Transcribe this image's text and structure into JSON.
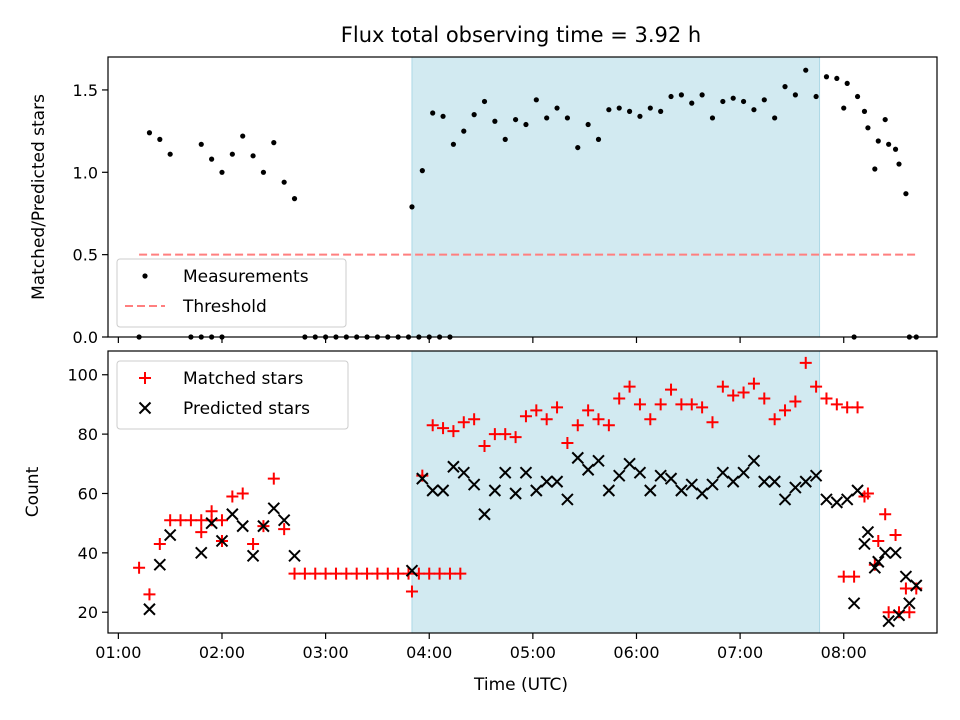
{
  "chart_data": [
    {
      "type": "scatter",
      "title": "Flux total observing time = 3.92 h",
      "ylabel": "Matched/Predicted stars",
      "xlabel": "",
      "ylim": [
        0,
        1.7
      ],
      "xlim": [
        "00:54",
        "08:54"
      ],
      "grid": false,
      "legend_position": "lower-left",
      "x_ticks": [
        "01:00",
        "02:00",
        "03:00",
        "04:00",
        "05:00",
        "06:00",
        "07:00",
        "08:00"
      ],
      "y_ticks": [
        "0.0",
        "0.5",
        "1.0",
        "1.5"
      ],
      "shaded_interval": [
        "03:50",
        "07:46"
      ],
      "shade_color": "#add8e6",
      "series": [
        {
          "name": "Measurements",
          "kind": "points",
          "color": "#000000",
          "points": [
            [
              "01:12",
              0.0
            ],
            [
              "01:18",
              1.24
            ],
            [
              "01:24",
              1.2
            ],
            [
              "01:30",
              1.11
            ],
            [
              "01:42",
              0.0
            ],
            [
              "01:48",
              0.0
            ],
            [
              "01:54",
              0.0
            ],
            [
              "02:00",
              0.0
            ],
            [
              "01:48",
              1.17
            ],
            [
              "01:54",
              1.08
            ],
            [
              "02:00",
              1.0
            ],
            [
              "02:06",
              1.11
            ],
            [
              "02:12",
              1.22
            ],
            [
              "02:18",
              1.1
            ],
            [
              "02:24",
              1.0
            ],
            [
              "02:30",
              1.18
            ],
            [
              "02:36",
              0.94
            ],
            [
              "02:42",
              0.84
            ],
            [
              "02:48",
              0.0
            ],
            [
              "02:54",
              0.0
            ],
            [
              "03:00",
              0.0
            ],
            [
              "03:06",
              0.0
            ],
            [
              "03:12",
              0.0
            ],
            [
              "03:18",
              0.0
            ],
            [
              "03:24",
              0.0
            ],
            [
              "03:30",
              0.0
            ],
            [
              "03:36",
              0.0
            ],
            [
              "03:42",
              0.0
            ],
            [
              "03:48",
              0.0
            ],
            [
              "03:54",
              0.0
            ],
            [
              "04:00",
              0.0
            ],
            [
              "04:06",
              0.0
            ],
            [
              "04:12",
              0.0
            ],
            [
              "03:50",
              0.79
            ],
            [
              "03:56",
              1.01
            ],
            [
              "04:02",
              1.36
            ],
            [
              "04:08",
              1.34
            ],
            [
              "04:14",
              1.17
            ],
            [
              "04:20",
              1.25
            ],
            [
              "04:26",
              1.35
            ],
            [
              "04:32",
              1.43
            ],
            [
              "04:38",
              1.31
            ],
            [
              "04:44",
              1.2
            ],
            [
              "04:50",
              1.32
            ],
            [
              "04:56",
              1.29
            ],
            [
              "05:02",
              1.44
            ],
            [
              "05:08",
              1.33
            ],
            [
              "05:14",
              1.39
            ],
            [
              "05:20",
              1.33
            ],
            [
              "05:26",
              1.15
            ],
            [
              "05:32",
              1.29
            ],
            [
              "05:38",
              1.2
            ],
            [
              "05:44",
              1.38
            ],
            [
              "05:50",
              1.39
            ],
            [
              "05:56",
              1.37
            ],
            [
              "06:02",
              1.34
            ],
            [
              "06:08",
              1.39
            ],
            [
              "06:14",
              1.37
            ],
            [
              "06:20",
              1.46
            ],
            [
              "06:26",
              1.47
            ],
            [
              "06:32",
              1.42
            ],
            [
              "06:38",
              1.47
            ],
            [
              "06:44",
              1.33
            ],
            [
              "06:50",
              1.43
            ],
            [
              "06:56",
              1.45
            ],
            [
              "07:02",
              1.43
            ],
            [
              "07:08",
              1.38
            ],
            [
              "07:14",
              1.44
            ],
            [
              "07:20",
              1.33
            ],
            [
              "07:26",
              1.52
            ],
            [
              "07:32",
              1.47
            ],
            [
              "07:38",
              1.62
            ],
            [
              "07:44",
              1.46
            ],
            [
              "07:50",
              1.58
            ],
            [
              "07:56",
              1.57
            ],
            [
              "08:02",
              1.54
            ],
            [
              "08:08",
              1.46
            ],
            [
              "08:14",
              1.27
            ],
            [
              "08:20",
              1.19
            ],
            [
              "08:26",
              1.17
            ],
            [
              "08:32",
              1.05
            ],
            [
              "08:38",
              0.0
            ],
            [
              "08:00",
              1.39
            ],
            [
              "08:06",
              0.0
            ],
            [
              "08:12",
              1.37
            ],
            [
              "08:18",
              1.02
            ],
            [
              "08:24",
              1.32
            ],
            [
              "08:30",
              1.14
            ],
            [
              "08:36",
              0.87
            ],
            [
              "08:42",
              0.0
            ]
          ]
        },
        {
          "name": "Threshold",
          "kind": "dashed-line",
          "color": "#ff7f7f",
          "points": [
            [
              "01:12",
              0.5
            ],
            [
              "08:42",
              0.5
            ]
          ]
        }
      ]
    },
    {
      "type": "scatter",
      "title": "",
      "ylabel": "Count",
      "xlabel": "Time (UTC)",
      "ylim": [
        13,
        108
      ],
      "xlim": [
        "00:54",
        "08:54"
      ],
      "grid": false,
      "legend_position": "top-left",
      "x_ticks": [
        "01:00",
        "02:00",
        "03:00",
        "04:00",
        "05:00",
        "06:00",
        "07:00",
        "08:00"
      ],
      "y_ticks": [
        "20",
        "40",
        "60",
        "80",
        "100"
      ],
      "shaded_interval": [
        "03:50",
        "07:46"
      ],
      "shade_color": "#add8e6",
      "series": [
        {
          "name": "Matched stars",
          "kind": "plus",
          "color": "#ff0000",
          "points": [
            [
              "01:12",
              35
            ],
            [
              "01:18",
              26
            ],
            [
              "01:24",
              43
            ],
            [
              "01:30",
              51
            ],
            [
              "01:36",
              51
            ],
            [
              "01:42",
              51
            ],
            [
              "01:48",
              51
            ],
            [
              "01:54",
              51
            ],
            [
              "02:00",
              51
            ],
            [
              "01:48",
              47
            ],
            [
              "01:54",
              54
            ],
            [
              "02:00",
              44
            ],
            [
              "02:06",
              59
            ],
            [
              "02:12",
              60
            ],
            [
              "02:18",
              43
            ],
            [
              "02:24",
              49
            ],
            [
              "02:30",
              65
            ],
            [
              "02:36",
              48
            ],
            [
              "02:42",
              33
            ],
            [
              "02:48",
              33
            ],
            [
              "02:54",
              33
            ],
            [
              "03:00",
              33
            ],
            [
              "03:06",
              33
            ],
            [
              "03:12",
              33
            ],
            [
              "03:18",
              33
            ],
            [
              "03:24",
              33
            ],
            [
              "03:30",
              33
            ],
            [
              "03:36",
              33
            ],
            [
              "03:42",
              33
            ],
            [
              "03:48",
              33
            ],
            [
              "03:54",
              33
            ],
            [
              "04:00",
              33
            ],
            [
              "04:06",
              33
            ],
            [
              "04:12",
              33
            ],
            [
              "04:18",
              33
            ],
            [
              "03:50",
              27
            ],
            [
              "03:56",
              66
            ],
            [
              "04:02",
              83
            ],
            [
              "04:08",
              82
            ],
            [
              "04:14",
              81
            ],
            [
              "04:20",
              84
            ],
            [
              "04:26",
              85
            ],
            [
              "04:32",
              76
            ],
            [
              "04:38",
              80
            ],
            [
              "04:44",
              80
            ],
            [
              "04:50",
              79
            ],
            [
              "04:56",
              86
            ],
            [
              "05:02",
              88
            ],
            [
              "05:08",
              85
            ],
            [
              "05:14",
              89
            ],
            [
              "05:20",
              77
            ],
            [
              "05:26",
              83
            ],
            [
              "05:32",
              88
            ],
            [
              "05:38",
              85
            ],
            [
              "05:44",
              83
            ],
            [
              "05:50",
              92
            ],
            [
              "05:56",
              96
            ],
            [
              "06:02",
              90
            ],
            [
              "06:08",
              85
            ],
            [
              "06:14",
              90
            ],
            [
              "06:20",
              95
            ],
            [
              "06:26",
              90
            ],
            [
              "06:32",
              90
            ],
            [
              "06:38",
              89
            ],
            [
              "06:44",
              84
            ],
            [
              "06:50",
              96
            ],
            [
              "06:56",
              93
            ],
            [
              "07:02",
              94
            ],
            [
              "07:08",
              97
            ],
            [
              "07:14",
              92
            ],
            [
              "07:20",
              85
            ],
            [
              "07:26",
              88
            ],
            [
              "07:32",
              91
            ],
            [
              "07:38",
              104
            ],
            [
              "07:44",
              96
            ],
            [
              "07:50",
              92
            ],
            [
              "07:56",
              90
            ],
            [
              "08:02",
              89
            ],
            [
              "08:08",
              89
            ],
            [
              "08:14",
              60
            ],
            [
              "08:20",
              44
            ],
            [
              "08:26",
              20
            ],
            [
              "08:32",
              20
            ],
            [
              "08:38",
              20
            ],
            [
              "08:00",
              32
            ],
            [
              "08:06",
              32
            ],
            [
              "08:12",
              59
            ],
            [
              "08:18",
              36
            ],
            [
              "08:24",
              53
            ],
            [
              "08:30",
              46
            ],
            [
              "08:36",
              28
            ],
            [
              "08:42",
              28
            ]
          ]
        },
        {
          "name": "Predicted stars",
          "kind": "cross",
          "color": "#000000",
          "points": [
            [
              "01:18",
              21
            ],
            [
              "01:24",
              36
            ],
            [
              "01:30",
              46
            ],
            [
              "01:48",
              40
            ],
            [
              "01:54",
              50
            ],
            [
              "02:00",
              44
            ],
            [
              "02:06",
              53
            ],
            [
              "02:12",
              49
            ],
            [
              "02:18",
              39
            ],
            [
              "02:24",
              49
            ],
            [
              "02:30",
              55
            ],
            [
              "02:36",
              51
            ],
            [
              "02:42",
              39
            ],
            [
              "03:50",
              34
            ],
            [
              "03:56",
              65
            ],
            [
              "04:02",
              61
            ],
            [
              "04:08",
              61
            ],
            [
              "04:14",
              69
            ],
            [
              "04:20",
              67
            ],
            [
              "04:26",
              63
            ],
            [
              "04:32",
              53
            ],
            [
              "04:38",
              61
            ],
            [
              "04:44",
              67
            ],
            [
              "04:50",
              60
            ],
            [
              "04:56",
              67
            ],
            [
              "05:02",
              61
            ],
            [
              "05:08",
              64
            ],
            [
              "05:14",
              64
            ],
            [
              "05:20",
              58
            ],
            [
              "05:26",
              72
            ],
            [
              "05:32",
              68
            ],
            [
              "05:38",
              71
            ],
            [
              "05:44",
              61
            ],
            [
              "05:50",
              66
            ],
            [
              "05:56",
              70
            ],
            [
              "06:02",
              67
            ],
            [
              "06:08",
              61
            ],
            [
              "06:14",
              66
            ],
            [
              "06:20",
              65
            ],
            [
              "06:26",
              61
            ],
            [
              "06:32",
              63
            ],
            [
              "06:38",
              60
            ],
            [
              "06:44",
              63
            ],
            [
              "06:50",
              67
            ],
            [
              "06:56",
              64
            ],
            [
              "07:02",
              67
            ],
            [
              "07:08",
              71
            ],
            [
              "07:14",
              64
            ],
            [
              "07:20",
              64
            ],
            [
              "07:26",
              58
            ],
            [
              "07:32",
              62
            ],
            [
              "07:38",
              64
            ],
            [
              "07:44",
              66
            ],
            [
              "07:50",
              58
            ],
            [
              "07:56",
              57
            ],
            [
              "08:02",
              58
            ],
            [
              "08:08",
              61
            ],
            [
              "08:14",
              47
            ],
            [
              "08:20",
              37
            ],
            [
              "08:26",
              17
            ],
            [
              "08:32",
              19
            ],
            [
              "08:38",
              23
            ],
            [
              "08:06",
              23
            ],
            [
              "08:12",
              43
            ],
            [
              "08:18",
              35
            ],
            [
              "08:24",
              40
            ],
            [
              "08:30",
              40
            ],
            [
              "08:36",
              32
            ],
            [
              "08:42",
              29
            ]
          ]
        }
      ]
    }
  ]
}
